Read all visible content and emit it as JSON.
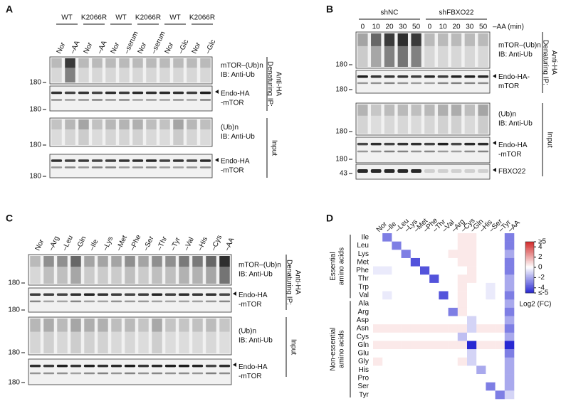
{
  "panels": [
    {
      "letter": "A",
      "groups": [
        "WT",
        "K2066R",
        "WT",
        "K2066R",
        "WT",
        "K2066R"
      ],
      "lanes": [
        "Nor",
        "–AA",
        "Nor",
        "–AA",
        "Nor",
        "–serum",
        "Nor",
        "–serum",
        "Nor",
        "–Glc",
        "Nor",
        "–Glc"
      ],
      "blots": [
        {
          "marker": "180",
          "labels": [
            "mTOR–(Ub)n",
            "IB: Anti-Ub"
          ]
        },
        {
          "marker": "180",
          "labels": [
            "Endo-HA",
            "-mTOR"
          ]
        },
        {
          "marker": "180",
          "labels": [
            "(Ub)n",
            "IB: Anti-Ub"
          ]
        },
        {
          "marker": "180",
          "labels": [
            "Endo-HA",
            "-mTOR"
          ]
        }
      ],
      "sections": [
        [
          "Denaturing IP:",
          "Anti-HA"
        ],
        [
          "Input"
        ]
      ]
    },
    {
      "letter": "B",
      "groups": [
        "shNC",
        "shFBXO22"
      ],
      "times": [
        "0",
        "10",
        "20",
        "30",
        "50",
        "0",
        "10",
        "20",
        "30",
        "50"
      ],
      "time_label": "–AA (min)",
      "blots": [
        {
          "marker": "180",
          "labels": [
            "mTOR–(Ub)n",
            "IB: Anti-Ub"
          ]
        },
        {
          "marker": "180",
          "labels": [
            "Endo-HA-",
            "mTOR"
          ]
        },
        {
          "marker": "180",
          "labels": [
            "(Ub)n",
            "IB: Anti-Ub"
          ]
        },
        {
          "marker": "180",
          "labels": [
            "Endo-HA",
            "-mTOR"
          ]
        },
        {
          "marker": "43",
          "labels": [
            "FBXO22"
          ]
        }
      ],
      "sections": [
        [
          "Denaturing IP:",
          "Anti-HA"
        ],
        [
          "Input"
        ]
      ]
    },
    {
      "letter": "C",
      "lanes": [
        "Nor",
        "–Arg",
        "–Leu",
        "–Gln",
        "–Ile",
        "–Lys",
        "–Met",
        "–Phe",
        "–Ser",
        "–Thr",
        "–Tyr",
        "–Val",
        "–His",
        "–Cys",
        "–AA"
      ],
      "blots": [
        {
          "marker": "180",
          "labels": [
            "mTOR–(Ub)n",
            "IB: Anti-Ub"
          ]
        },
        {
          "marker": "180",
          "labels": [
            "Endo-HA",
            "-mTOR"
          ]
        },
        {
          "marker": "180",
          "labels": [
            "(Ub)n",
            "IB: Anti-Ub"
          ]
        },
        {
          "marker": "180",
          "labels": [
            "Endo-HA",
            "-mTOR"
          ]
        }
      ],
      "sections": [
        [
          "Denaturing IP:",
          "Anti-HA"
        ],
        [
          "Input"
        ]
      ]
    }
  ],
  "heatmap": {
    "letter": "D",
    "columns": [
      "Nor",
      "–Ile",
      "–Leu",
      "–Lys",
      "–Met",
      "–Phe",
      "–Thr",
      "–Val",
      "–Arg",
      "–Cys",
      "–Gln",
      "–His",
      "–Ser",
      "–Tyr",
      "–AA"
    ],
    "rows": [
      "Ile",
      "Leu",
      "Lys",
      "Met",
      "Phe",
      "Thr",
      "Trp",
      "Val",
      "Ala",
      "Arg",
      "Asp",
      "Asn",
      "Cys",
      "Gln",
      "Glu",
      "Gly",
      "His",
      "Pro",
      "Ser",
      "Tyr"
    ],
    "row_groups": [
      [
        "Essential",
        "amino acids"
      ],
      [
        "Non-essential",
        "amino acids"
      ]
    ],
    "values": [
      [
        0,
        -3,
        0,
        0,
        0,
        0,
        0,
        0,
        0,
        0.5,
        0.5,
        0,
        0,
        0,
        -3
      ],
      [
        0,
        0,
        -3,
        0,
        0,
        0,
        0,
        0,
        0,
        0.5,
        0.5,
        0,
        0,
        0,
        -3
      ],
      [
        0,
        0,
        0,
        -3,
        0,
        0,
        0,
        0,
        0.5,
        0.5,
        0.5,
        0,
        0,
        0,
        -2
      ],
      [
        0,
        0,
        0,
        0,
        -4,
        0,
        0,
        0,
        0,
        0.5,
        0.5,
        0,
        0,
        0,
        -3
      ],
      [
        -0.5,
        -0.5,
        0,
        0,
        0,
        -4,
        0,
        0,
        0,
        0,
        0.5,
        0,
        0,
        0,
        -3
      ],
      [
        0,
        0,
        0,
        0,
        0,
        0,
        -4,
        0,
        0,
        0.5,
        0.5,
        0,
        0,
        0,
        -2
      ],
      [
        0,
        0,
        0,
        0,
        0,
        0,
        0,
        0,
        0,
        0.5,
        0,
        0,
        -0.5,
        0,
        -2
      ],
      [
        0,
        -0.5,
        0,
        0,
        0,
        0,
        0,
        -4,
        0,
        0.5,
        0,
        0,
        -0.5,
        0,
        -3
      ],
      [
        0,
        0,
        0,
        0,
        0,
        0,
        0,
        0,
        0,
        0.5,
        0,
        0,
        0,
        0,
        -2
      ],
      [
        0,
        0,
        0,
        0,
        0,
        0,
        0,
        0,
        -3,
        0.5,
        0,
        0,
        0,
        0,
        -3
      ],
      [
        0,
        0,
        0,
        0,
        0,
        0,
        0,
        0,
        0,
        0,
        -1,
        0,
        0,
        0,
        -2
      ],
      [
        0.5,
        0.5,
        0.5,
        0.5,
        0.5,
        0.5,
        0.5,
        0.5,
        0.5,
        0.5,
        -1,
        0.5,
        0.5,
        0.5,
        -3
      ],
      [
        0,
        0,
        0,
        0,
        0,
        0,
        0,
        0,
        0,
        -1.5,
        0,
        0,
        0,
        0,
        -2
      ],
      [
        0.5,
        0.5,
        0.5,
        0.5,
        0.5,
        0.5,
        0.5,
        0.5,
        0.5,
        0.5,
        -5,
        0.5,
        0.5,
        0.5,
        -5
      ],
      [
        0,
        0,
        0,
        0,
        0,
        0,
        0,
        0,
        0,
        0,
        -1,
        0,
        0,
        0,
        -3
      ],
      [
        0.5,
        0,
        0,
        0,
        0,
        0,
        0,
        0,
        0,
        0.5,
        -1,
        0,
        0,
        0,
        -2
      ],
      [
        0,
        0,
        0,
        0,
        0,
        0,
        0,
        0,
        0,
        0,
        0,
        -2,
        0,
        0,
        -2
      ],
      [
        0,
        0,
        0,
        0,
        0,
        0,
        0,
        0,
        0,
        0,
        0,
        0,
        0,
        0,
        -2
      ],
      [
        0,
        0,
        0,
        0,
        0,
        0,
        0,
        0,
        0,
        0,
        0,
        0,
        -3,
        0,
        -2
      ],
      [
        0,
        0,
        0,
        0,
        0,
        0,
        0,
        0,
        0,
        0,
        0,
        0,
        0,
        -3,
        -1
      ]
    ],
    "clim": [
      -5,
      5
    ],
    "cticks": [
      {
        "value": 5,
        "label": "≥5"
      },
      4,
      2,
      0,
      -2,
      -4,
      {
        "value": -5,
        "label": "≤-5"
      }
    ],
    "colorbar_label": "Log2 (FC)"
  }
}
